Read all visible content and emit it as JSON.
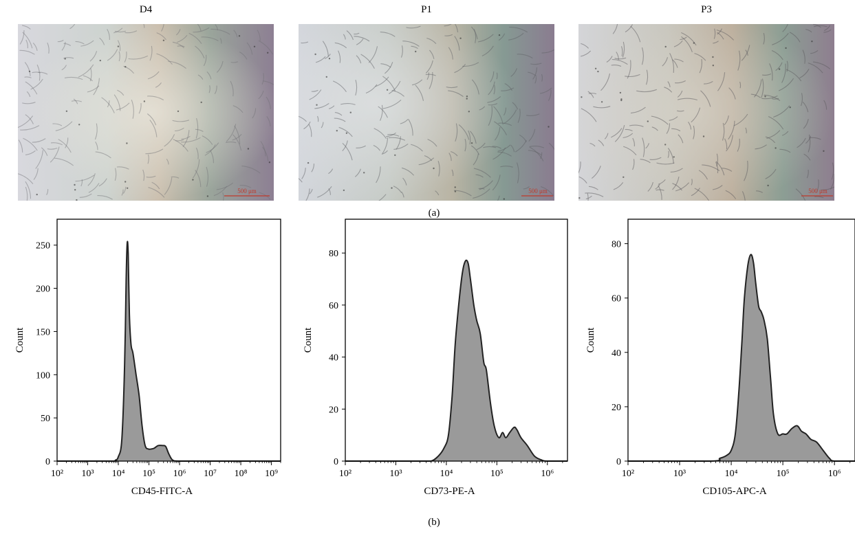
{
  "figure": {
    "panel_a_label": "(a)",
    "panel_b_label": "(b)"
  },
  "micrographs": [
    {
      "title": "D4",
      "scale_bar": "500 μm"
    },
    {
      "title": "P1",
      "scale_bar": "500 μm"
    },
    {
      "title": "P3",
      "scale_bar": "500 μm"
    }
  ],
  "colors": {
    "histogram_fill": "#9a9a9a",
    "histogram_line": "#222222",
    "scale_bar": "#c0392b"
  },
  "chart_data": [
    {
      "type": "area",
      "xlabel": "CD45-FITC-A",
      "ylabel": "Count",
      "xscale": "log",
      "xlim": [
        100,
        2000000000
      ],
      "ylim": [
        0,
        280
      ],
      "xticks": [
        "10^2",
        "10^3",
        "10^4",
        "10^5",
        "10^6",
        "10^7",
        "10^8",
        "10^9"
      ],
      "yticks": [
        0,
        50,
        100,
        150,
        200,
        250
      ],
      "x": [
        100,
        6000,
        8000,
        10000,
        13000,
        16000,
        18000,
        19500,
        21000,
        23000,
        26000,
        30000,
        38000,
        48000,
        60000,
        75000,
        95000,
        120000,
        150000,
        200000,
        280000,
        350000,
        450000,
        600000,
        1000000,
        10000000,
        1000000000,
        2000000000
      ],
      "y": [
        0,
        0,
        1,
        5,
        25,
        110,
        210,
        252,
        240,
        170,
        135,
        125,
        100,
        75,
        40,
        18,
        14,
        14,
        15,
        18,
        18,
        17,
        8,
        1,
        0,
        0,
        0,
        0
      ]
    },
    {
      "type": "area",
      "xlabel": "CD73-PE-A",
      "ylabel": "Count",
      "xscale": "log",
      "xlim": [
        100,
        2500000
      ],
      "ylim": [
        0,
        93
      ],
      "xticks": [
        "10^2",
        "10^3",
        "10^4",
        "10^5",
        "10^6"
      ],
      "yticks": [
        0,
        20,
        40,
        60,
        80
      ],
      "x": [
        100,
        3000,
        5000,
        7000,
        9000,
        11000,
        13000,
        15000,
        18000,
        21000,
        24000,
        27000,
        30000,
        35000,
        40000,
        47000,
        55000,
        62000,
        75000,
        90000,
        110000,
        130000,
        150000,
        180000,
        220000,
        250000,
        300000,
        400000,
        550000,
        750000,
        1000000,
        2500000
      ],
      "y": [
        0,
        0,
        0,
        2,
        5,
        10,
        25,
        45,
        62,
        73,
        77,
        76,
        70,
        60,
        54,
        49,
        38,
        35,
        22,
        13,
        9,
        11,
        9,
        11,
        13,
        12,
        9,
        6,
        2,
        0.5,
        0,
        0
      ]
    },
    {
      "type": "area",
      "xlabel": "CD105-APC-A",
      "ylabel": "Count",
      "xscale": "log",
      "xlim": [
        100,
        2500000
      ],
      "ylim": [
        0,
        89
      ],
      "xticks": [
        "10^2",
        "10^3",
        "10^4",
        "10^5",
        "10^6"
      ],
      "yticks": [
        0,
        20,
        40,
        60,
        80
      ],
      "x": [
        100,
        4000,
        6000,
        8000,
        10000,
        12000,
        14000,
        16000,
        18000,
        21000,
        24000,
        27000,
        30000,
        34000,
        38000,
        43000,
        50000,
        58000,
        66000,
        80000,
        100000,
        120000,
        150000,
        190000,
        230000,
        280000,
        350000,
        450000,
        600000,
        800000,
        1000000,
        2500000
      ],
      "y": [
        0,
        0,
        1,
        2,
        4,
        10,
        25,
        43,
        60,
        72,
        76,
        73,
        65,
        57,
        55,
        52,
        45,
        30,
        17,
        10,
        10,
        10,
        12,
        13,
        11,
        10,
        8,
        7,
        4,
        1,
        0,
        0
      ]
    }
  ]
}
